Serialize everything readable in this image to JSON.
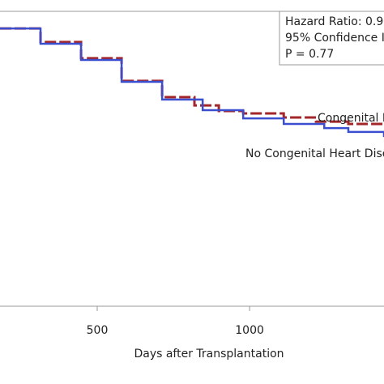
{
  "chart_data": {
    "type": "step",
    "xlabel": "Days after Transplantation",
    "annotations": [
      "Hazard Ratio: 0.9",
      "95% Confidence I",
      "P = 0.77"
    ],
    "xlim": [
      181,
      1441
    ],
    "ylim": [
      0,
      1
    ],
    "xticks": [
      500,
      1000
    ],
    "series": [
      {
        "name": "Congenital H",
        "color": "#a3262a",
        "x": [
          181,
          314,
          447,
          580,
          713,
          819,
          899,
          979,
          1112,
          1218,
          1324,
          1441
        ],
        "values": [
          0.942,
          0.896,
          0.841,
          0.764,
          0.709,
          0.681,
          0.662,
          0.654,
          0.64,
          0.626,
          0.618,
          0.618
        ]
      },
      {
        "name": "No Congenital Heart Dise",
        "color": "#3a4fd0",
        "x": [
          181,
          314,
          447,
          580,
          713,
          846,
          979,
          1112,
          1245,
          1324,
          1441
        ],
        "values": [
          0.942,
          0.89,
          0.835,
          0.761,
          0.701,
          0.665,
          0.637,
          0.618,
          0.604,
          0.591,
          0.574
        ]
      }
    ]
  }
}
